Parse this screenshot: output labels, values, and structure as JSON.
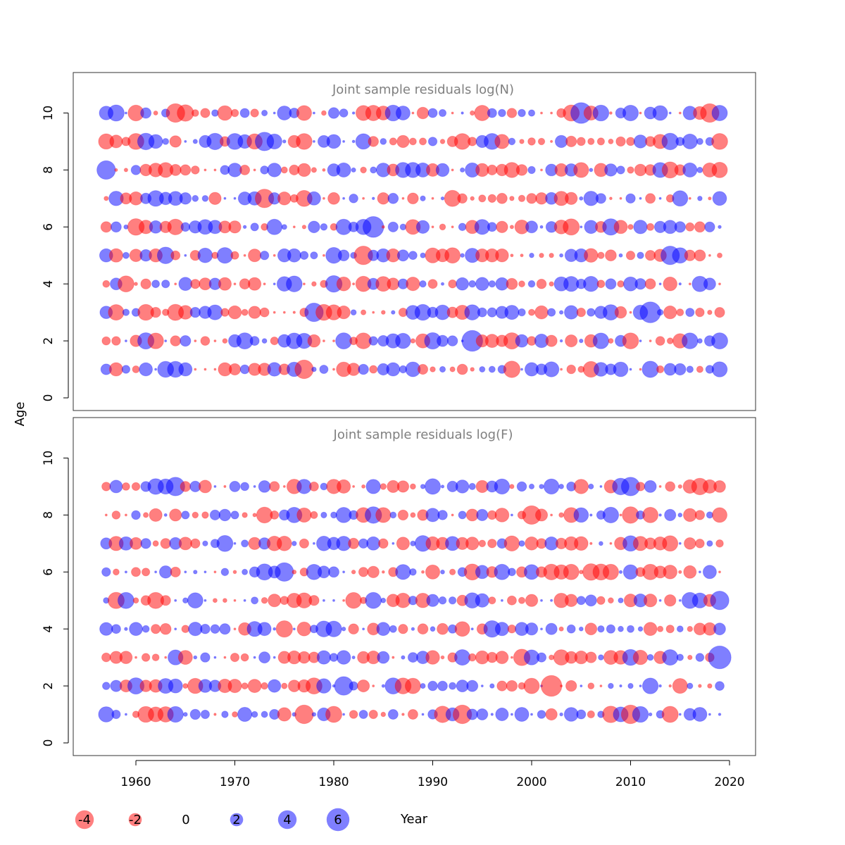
{
  "chart_data": {
    "type": "scatter",
    "description_kind": "bubble residual plot",
    "xlabel": "Year",
    "ylabel": "Age",
    "colors": {
      "negative": "#ff0000",
      "positive": "#0000ff",
      "opacity": 0.5
    },
    "panels": [
      {
        "title": "Joint sample residuals log(N)",
        "xlim": [
          1954,
          2022
        ],
        "ylim": [
          0,
          11
        ],
        "ages": [
          1,
          2,
          3,
          4,
          5,
          6,
          7,
          8,
          9,
          10
        ],
        "y_ticks": [
          "0",
          "2",
          "4",
          "6",
          "8",
          "10"
        ],
        "years": [
          1957,
          2019
        ],
        "notable_points": [
          {
            "year": 1964,
            "age": 10,
            "value": -4
          },
          {
            "year": 1973,
            "age": 9,
            "value": 4
          },
          {
            "year": 1973,
            "age": 7,
            "value": -4
          },
          {
            "year": 1984,
            "age": 6,
            "value": 5
          },
          {
            "year": 1983,
            "age": 5,
            "value": -4
          },
          {
            "year": 1978,
            "age": 3,
            "value": 4
          },
          {
            "year": 1977,
            "age": 1,
            "value": -4
          },
          {
            "year": 1994,
            "age": 2,
            "value": 5
          },
          {
            "year": 2005,
            "age": 10,
            "value": 5
          },
          {
            "year": 2014,
            "age": 5,
            "value": 4
          },
          {
            "year": 2012,
            "age": 3,
            "value": 5
          },
          {
            "year": 1957,
            "age": 8,
            "value": 4
          },
          {
            "year": 2018,
            "age": 10,
            "value": -4
          },
          {
            "year": 2019,
            "age": 9,
            "value": -3
          }
        ]
      },
      {
        "title": "Joint sample residuals log(F)",
        "xlim": [
          1954,
          2022
        ],
        "ylim": [
          0,
          11
        ],
        "ages": [
          1,
          2,
          3,
          4,
          5,
          6,
          7,
          8,
          9
        ],
        "y_ticks": [
          "0",
          "2",
          "4",
          "6",
          "8",
          "10"
        ],
        "years": [
          1957,
          2019
        ],
        "notable_points": [
          {
            "year": 1964,
            "age": 9,
            "value": 4
          },
          {
            "year": 1975,
            "age": 6,
            "value": 4
          },
          {
            "year": 1977,
            "age": 1,
            "value": -4
          },
          {
            "year": 1981,
            "age": 2,
            "value": 4
          },
          {
            "year": 1993,
            "age": 1,
            "value": -4
          },
          {
            "year": 2002,
            "age": 2,
            "value": -5
          },
          {
            "year": 2000,
            "age": 8,
            "value": -4
          },
          {
            "year": 2019,
            "age": 3,
            "value": 6
          },
          {
            "year": 2019,
            "age": 5,
            "value": 4
          },
          {
            "year": 2010,
            "age": 1,
            "value": -4
          },
          {
            "year": 2010,
            "age": 9,
            "value": 4
          }
        ]
      }
    ],
    "x_ticks": [
      "1960",
      "1970",
      "1980",
      "1990",
      "2000",
      "2010",
      "2020"
    ],
    "legend": [
      {
        "label": "-4",
        "value": -4
      },
      {
        "label": "-2",
        "value": -2
      },
      {
        "label": "0",
        "value": 0
      },
      {
        "label": "2",
        "value": 2
      },
      {
        "label": "4",
        "value": 4
      },
      {
        "label": "6",
        "value": 6
      }
    ]
  }
}
